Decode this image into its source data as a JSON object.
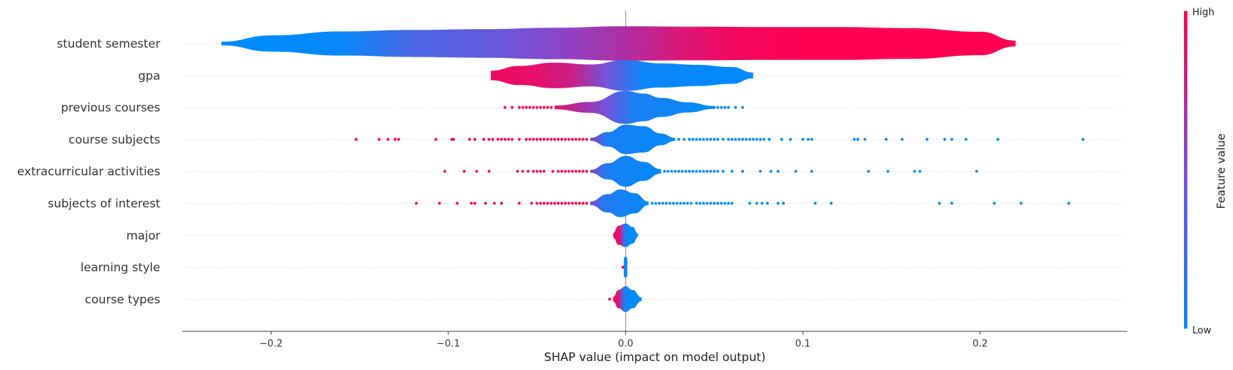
{
  "chart_data": {
    "type": "violin",
    "xlabel": "SHAP value (impact on model output)",
    "xlim": [
      -0.25,
      0.283
    ],
    "xticks": [
      -0.2,
      -0.1,
      0.0,
      0.1,
      0.2
    ],
    "xtick_labels": [
      "−0.2",
      "−0.1",
      "0.0",
      "0.1",
      "0.2"
    ],
    "grid": "dotted horizontal lines per feature",
    "colorbar": {
      "title": "Feature value",
      "high_label": "High",
      "low_label": "Low",
      "high_color": "#ff0052",
      "low_color": "#008bfb",
      "mid_color": "#7b4fd8"
    },
    "features": [
      {
        "name": "student semester",
        "range": [
          -0.228,
          0.22
        ],
        "density": [
          [
            -0.228,
            0.5
          ],
          [
            -0.2,
            2.2
          ],
          [
            -0.16,
            3.3
          ],
          [
            -0.12,
            3.7
          ],
          [
            -0.08,
            3.9
          ],
          [
            -0.04,
            4.3
          ],
          [
            0.0,
            4.7
          ],
          [
            0.04,
            4.6
          ],
          [
            0.08,
            4.5
          ],
          [
            0.12,
            4.5
          ],
          [
            0.16,
            4.2
          ],
          [
            0.2,
            3.2
          ],
          [
            0.22,
            0.8
          ]
        ],
        "value_stops": [
          [
            -0.228,
            0.0
          ],
          [
            -0.2,
            0.0
          ],
          [
            -0.16,
            0.03
          ],
          [
            -0.12,
            0.3
          ],
          [
            -0.08,
            0.4
          ],
          [
            -0.04,
            0.55
          ],
          [
            0.0,
            0.7
          ],
          [
            0.03,
            0.85
          ],
          [
            0.06,
            0.95
          ],
          [
            0.1,
            1.0
          ],
          [
            0.22,
            1.0
          ]
        ],
        "outliers": []
      },
      {
        "name": "gpa",
        "range": [
          -0.076,
          0.072
        ],
        "density": [
          [
            -0.076,
            1.3
          ],
          [
            -0.06,
            2.6
          ],
          [
            -0.04,
            3.5
          ],
          [
            -0.02,
            3.0
          ],
          [
            0.0,
            4.2
          ],
          [
            0.02,
            3.3
          ],
          [
            0.04,
            2.9
          ],
          [
            0.06,
            2.3
          ],
          [
            0.072,
            0.8
          ]
        ],
        "value_stops": [
          [
            -0.076,
            0.95
          ],
          [
            -0.05,
            0.9
          ],
          [
            -0.03,
            0.8
          ],
          [
            -0.01,
            0.45
          ],
          [
            0.01,
            0.05
          ],
          [
            0.072,
            0.0
          ]
        ],
        "outliers": []
      },
      {
        "name": "previous courses",
        "range": [
          -0.04,
          0.05
        ],
        "density": [
          [
            -0.04,
            0.5
          ],
          [
            -0.02,
            1.5
          ],
          [
            0.0,
            4.5
          ],
          [
            0.01,
            3.8
          ],
          [
            0.02,
            2.6
          ],
          [
            0.035,
            1.4
          ],
          [
            0.05,
            0.4
          ]
        ],
        "value_stops": [
          [
            -0.04,
            0.9
          ],
          [
            -0.025,
            0.7
          ],
          [
            -0.01,
            0.45
          ],
          [
            0.005,
            0.1
          ],
          [
            0.05,
            0.0
          ]
        ],
        "outliers": [
          {
            "v": 1,
            "x": [
              -0.068,
              -0.064,
              -0.06,
              -0.058,
              -0.056,
              -0.054,
              -0.052,
              -0.05,
              -0.048,
              -0.046,
              -0.044,
              -0.042
            ]
          },
          {
            "v": 0,
            "x": [
              0.05,
              0.052,
              0.054,
              0.056,
              0.058,
              0.062,
              0.066
            ]
          }
        ]
      },
      {
        "name": "course subjects",
        "range": [
          -0.02,
          0.028
        ],
        "density": [
          [
            -0.02,
            0.4
          ],
          [
            -0.01,
            2.0
          ],
          [
            0.0,
            4.0
          ],
          [
            0.01,
            3.6
          ],
          [
            0.02,
            1.6
          ],
          [
            0.028,
            0.4
          ]
        ],
        "value_stops": [
          [
            -0.02,
            0.6
          ],
          [
            -0.01,
            0.1
          ],
          [
            0.028,
            0.0
          ]
        ],
        "outliers": [
          {
            "v": 1,
            "x": [
              -0.152,
              -0.139,
              -0.134,
              -0.13,
              -0.128,
              -0.107,
              -0.098,
              -0.097,
              -0.088,
              -0.085,
              -0.08,
              -0.077,
              -0.075,
              -0.072,
              -0.07,
              -0.068,
              -0.066,
              -0.064,
              -0.06,
              -0.056,
              -0.054,
              -0.052,
              -0.05,
              -0.048,
              -0.046,
              -0.044,
              -0.042,
              -0.04,
              -0.038,
              -0.036,
              -0.034,
              -0.032,
              -0.03,
              -0.028,
              -0.026,
              -0.024,
              -0.022
            ]
          },
          {
            "v": 0,
            "x": [
              0.03,
              0.033,
              0.036,
              0.038,
              0.04,
              0.042,
              0.044,
              0.046,
              0.048,
              0.05,
              0.052,
              0.055,
              0.058,
              0.06,
              0.062,
              0.064,
              0.066,
              0.068,
              0.07,
              0.072,
              0.074,
              0.076,
              0.078,
              0.081,
              0.088,
              0.093,
              0.1,
              0.103,
              0.105,
              0.129,
              0.131,
              0.135,
              0.147,
              0.156,
              0.17,
              0.18,
              0.184,
              0.192,
              0.21,
              0.258
            ]
          }
        ]
      },
      {
        "name": "extracurricular activities",
        "range": [
          -0.02,
          0.02
        ],
        "density": [
          [
            -0.02,
            0.4
          ],
          [
            -0.01,
            2.2
          ],
          [
            0.0,
            4.2
          ],
          [
            0.01,
            2.6
          ],
          [
            0.02,
            0.6
          ]
        ],
        "value_stops": [
          [
            -0.02,
            0.55
          ],
          [
            -0.01,
            0.1
          ],
          [
            0.02,
            0.0
          ]
        ],
        "outliers": [
          {
            "v": 1,
            "x": [
              -0.102,
              -0.091,
              -0.084,
              -0.077,
              -0.061,
              -0.058,
              -0.055,
              -0.052,
              -0.05,
              -0.048,
              -0.046,
              -0.041,
              -0.038,
              -0.036,
              -0.034,
              -0.032,
              -0.03,
              -0.028,
              -0.026,
              -0.024,
              -0.022
            ]
          },
          {
            "v": 0,
            "x": [
              0.022,
              0.024,
              0.026,
              0.028,
              0.03,
              0.032,
              0.034,
              0.036,
              0.038,
              0.04,
              0.042,
              0.044,
              0.046,
              0.048,
              0.05,
              0.052,
              0.055,
              0.06,
              0.066,
              0.076,
              0.082,
              0.086,
              0.096,
              0.105,
              0.137,
              0.148,
              0.163,
              0.166,
              0.198
            ]
          }
        ]
      },
      {
        "name": "subjects of interest",
        "range": [
          -0.02,
          0.013
        ],
        "density": [
          [
            -0.02,
            0.5
          ],
          [
            -0.01,
            2.5
          ],
          [
            -0.003,
            3.8
          ],
          [
            0.005,
            2.8
          ],
          [
            0.013,
            0.5
          ]
        ],
        "value_stops": [
          [
            -0.02,
            0.5
          ],
          [
            -0.012,
            0.15
          ],
          [
            0.013,
            0.0
          ]
        ],
        "outliers": [
          {
            "v": 1,
            "x": [
              -0.118,
              -0.105,
              -0.095,
              -0.087,
              -0.085,
              -0.079,
              -0.074,
              -0.07,
              -0.06,
              -0.053,
              -0.05,
              -0.048,
              -0.046,
              -0.044,
              -0.042,
              -0.04,
              -0.038,
              -0.036,
              -0.034,
              -0.032,
              -0.03,
              -0.028,
              -0.026,
              -0.024,
              -0.022
            ]
          },
          {
            "v": 0,
            "x": [
              0.015,
              0.017,
              0.019,
              0.021,
              0.023,
              0.025,
              0.027,
              0.029,
              0.031,
              0.033,
              0.035,
              0.037,
              0.04,
              0.042,
              0.044,
              0.046,
              0.048,
              0.05,
              0.052,
              0.054,
              0.056,
              0.058,
              0.06,
              0.07,
              0.074,
              0.077,
              0.08,
              0.086,
              0.089,
              0.107,
              0.116,
              0.177,
              0.184,
              0.208,
              0.223,
              0.25
            ]
          }
        ]
      },
      {
        "name": "major",
        "range": [
          -0.007,
          0.007
        ],
        "density": [
          [
            -0.007,
            0.6
          ],
          [
            -0.004,
            2.6
          ],
          [
            0.0,
            3.2
          ],
          [
            0.004,
            2.3
          ],
          [
            0.007,
            0.5
          ]
        ],
        "value_stops": [
          [
            -0.007,
            1.0
          ],
          [
            -0.003,
            0.85
          ],
          [
            -0.001,
            0.3
          ],
          [
            0.001,
            0.0
          ],
          [
            0.007,
            0.0
          ]
        ],
        "outliers": []
      },
      {
        "name": "learning style",
        "range": [
          -0.001,
          0.001
        ],
        "density": [
          [
            -0.001,
            2.5
          ],
          [
            0.0,
            3.0
          ],
          [
            0.001,
            2.5
          ]
        ],
        "value_stops": [
          [
            -0.001,
            0.0
          ],
          [
            0.001,
            0.0
          ]
        ],
        "outliers": [
          {
            "v": 1,
            "x": [
              -0.0015
            ]
          }
        ]
      },
      {
        "name": "course types",
        "range": [
          -0.007,
          0.009
        ],
        "density": [
          [
            -0.007,
            0.6
          ],
          [
            -0.004,
            2.5
          ],
          [
            0.0,
            3.5
          ],
          [
            0.004,
            2.5
          ],
          [
            0.009,
            0.5
          ]
        ],
        "value_stops": [
          [
            -0.007,
            1.0
          ],
          [
            -0.004,
            0.85
          ],
          [
            -0.001,
            0.2
          ],
          [
            0.001,
            0.0
          ],
          [
            0.009,
            0.0
          ]
        ],
        "outliers": [
          {
            "v": 1,
            "x": [
              -0.009
            ]
          }
        ]
      }
    ]
  }
}
